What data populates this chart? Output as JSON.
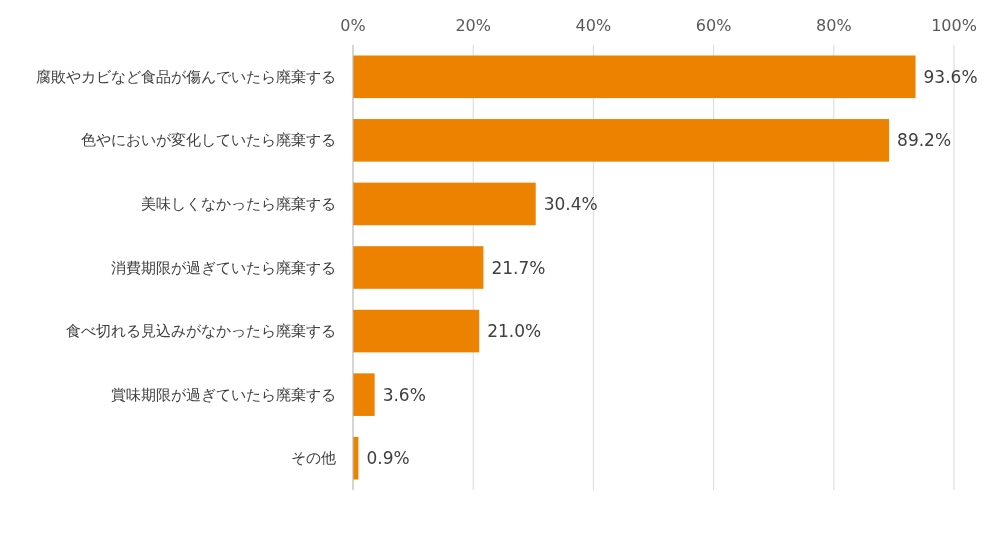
{
  "chart_data": {
    "type": "bar",
    "orientation": "horizontal",
    "categories": [
      "腐敗やカビなど食品が傷んでいたら廃棄する",
      "色やにおいが変化していたら廃棄する",
      "美味しくなかったら廃棄する",
      "消費期限が過ぎていたら廃棄する",
      "食べ切れる見込みがなかったら廃棄する",
      "賞味期限が過ぎていたら廃棄する",
      "その他"
    ],
    "values": [
      93.6,
      89.2,
      30.4,
      21.7,
      21.0,
      3.6,
      0.9
    ],
    "value_labels": [
      "93.6%",
      "89.2%",
      "30.4%",
      "21.7%",
      "21.0%",
      "3.6%",
      "0.9%"
    ],
    "color": "#ed8200",
    "xlim": [
      0,
      100
    ],
    "xticks": [
      {
        "value": 0,
        "label": "0%"
      },
      {
        "value": 20,
        "label": "20%"
      },
      {
        "value": 40,
        "label": "40%"
      },
      {
        "value": 60,
        "label": "60%"
      },
      {
        "value": 80,
        "label": "80%"
      },
      {
        "value": 100,
        "label": "100%"
      }
    ],
    "grid": "x"
  }
}
